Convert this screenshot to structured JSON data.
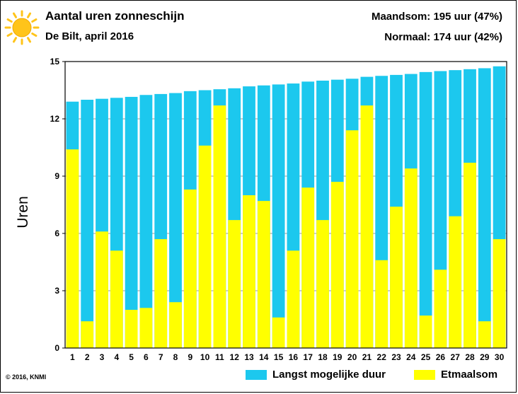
{
  "header": {
    "title": "Aantal uren zonneschijn",
    "subtitle": "De Bilt, april 2016",
    "maandsom": "Maandsom: 195 uur (47%)",
    "normaal": "Normaal: 174 uur (42%)"
  },
  "footer": {
    "copyright": "© 2016, KNMI"
  },
  "colors": {
    "max_duration": "#1cc8ee",
    "sunshine": "#ffff00",
    "sun": "#ffc41a"
  },
  "icons": {
    "logo": "sun-icon"
  },
  "chart_data": {
    "type": "bar",
    "ylabel": "Uren",
    "xlabel": "",
    "ylim": [
      0,
      15
    ],
    "yticks": [
      0,
      3,
      6,
      9,
      12,
      15
    ],
    "grid": true,
    "legend_position": "bottom-right",
    "categories": [
      "1",
      "2",
      "3",
      "4",
      "5",
      "6",
      "7",
      "8",
      "9",
      "10",
      "11",
      "12",
      "13",
      "14",
      "15",
      "16",
      "17",
      "18",
      "19",
      "20",
      "21",
      "22",
      "23",
      "24",
      "25",
      "26",
      "27",
      "28",
      "29",
      "30"
    ],
    "series": [
      {
        "name": "Langst mogelijke duur",
        "values": [
          12.9,
          13.0,
          13.05,
          13.1,
          13.15,
          13.25,
          13.3,
          13.35,
          13.45,
          13.5,
          13.55,
          13.6,
          13.7,
          13.75,
          13.8,
          13.85,
          13.95,
          14.0,
          14.05,
          14.1,
          14.2,
          14.25,
          14.3,
          14.35,
          14.45,
          14.5,
          14.55,
          14.6,
          14.65,
          14.75
        ]
      },
      {
        "name": "Etmaalsom",
        "values": [
          10.4,
          1.4,
          6.1,
          5.1,
          2.0,
          2.1,
          5.7,
          2.4,
          8.3,
          10.6,
          12.7,
          6.7,
          8.0,
          7.7,
          1.6,
          5.1,
          8.4,
          6.7,
          8.7,
          11.4,
          12.7,
          4.6,
          7.4,
          9.4,
          1.7,
          4.1,
          6.9,
          9.7,
          1.4,
          5.7
        ]
      }
    ]
  }
}
